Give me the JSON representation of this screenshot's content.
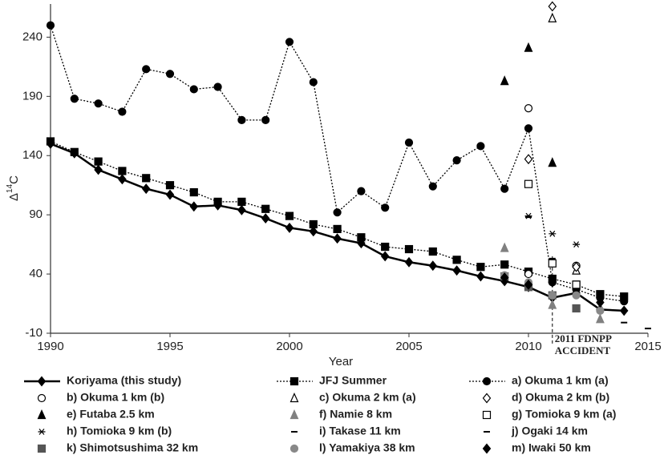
{
  "chart_data": {
    "type": "line",
    "xlabel": "Year",
    "ylabel_parts": [
      "Δ",
      "14",
      "C"
    ],
    "xlim": [
      1990,
      2015
    ],
    "xticks": [
      1990,
      1995,
      2000,
      2005,
      2010,
      2015
    ],
    "ylim": [
      -10,
      268
    ],
    "yticks": [
      -10,
      40,
      90,
      140,
      190,
      240
    ],
    "annotation": {
      "lines": [
        "2011 FDNPP",
        "ACCIDENT"
      ],
      "x": 2011
    },
    "series": [
      {
        "name": "Koriyama (this study)",
        "color": "#000000",
        "line": "solid",
        "marker": "diamond",
        "filled": true,
        "x": [
          1990,
          1991,
          1992,
          1993,
          1994,
          1995,
          1996,
          1997,
          1998,
          1999,
          2000,
          2001,
          2002,
          2003,
          2004,
          2005,
          2006,
          2007,
          2008,
          2009,
          2010,
          2011,
          2012,
          2013,
          2014
        ],
        "values": [
          150,
          142,
          128,
          120,
          112,
          107,
          97,
          98,
          94,
          87,
          79,
          76,
          70,
          66,
          55,
          50,
          47,
          43,
          38,
          34,
          29,
          20,
          24,
          10,
          9
        ]
      },
      {
        "name": "JFJ Summer",
        "color": "#000000",
        "line": "dotted",
        "marker": "square",
        "filled": true,
        "x": [
          1990,
          1991,
          1992,
          1993,
          1994,
          1995,
          1996,
          1997,
          1998,
          1999,
          2000,
          2001,
          2002,
          2003,
          2004,
          2005,
          2006,
          2007,
          2008,
          2009,
          2010,
          2011,
          2012,
          2013,
          2014
        ],
        "values": [
          152,
          143,
          135,
          127,
          121,
          115,
          109,
          101,
          101,
          95,
          89,
          82,
          78,
          71,
          63,
          61,
          59,
          52,
          46,
          48,
          42,
          36,
          31,
          23,
          21
        ]
      },
      {
        "name": "a) Okuma 1 km (a)",
        "color": "#000000",
        "line": "dotted",
        "marker": "circle",
        "filled": true,
        "x": [
          1990,
          1991,
          1992,
          1993,
          1994,
          1995,
          1996,
          1997,
          1998,
          1999,
          2000,
          2001,
          2002,
          2003,
          2004,
          2005,
          2006,
          2007,
          2008,
          2009,
          2010,
          2011,
          2012,
          2013,
          2014
        ],
        "values": [
          250,
          188,
          184,
          177,
          213,
          209,
          196,
          198,
          170,
          170,
          236,
          202,
          92,
          110,
          96,
          151,
          114,
          136,
          148,
          112,
          163,
          33,
          27,
          20,
          17
        ]
      },
      {
        "name": "b) Okuma 1 km (b)",
        "color": "#000000",
        "line": "none",
        "marker": "circle",
        "filled": false,
        "x": [
          2010,
          2010,
          2012
        ],
        "values": [
          180,
          40,
          47
        ]
      },
      {
        "name": "c) Okuma 2 km (a)",
        "color": "#000000",
        "line": "none",
        "marker": "triangle",
        "filled": false,
        "x": [
          2011,
          2012
        ],
        "values": [
          256,
          43
        ]
      },
      {
        "name": "d) Okuma 2 km (b)",
        "color": "#000000",
        "line": "none",
        "marker": "diamond",
        "filled": false,
        "x": [
          2011,
          2010,
          2012
        ],
        "values": [
          266,
          137,
          46
        ]
      },
      {
        "name": "e) Futaba 2.5 km",
        "color": "#000000",
        "line": "none",
        "marker": "triangle",
        "filled": true,
        "x": [
          2009,
          2010,
          2011
        ],
        "values": [
          203,
          231,
          134
        ]
      },
      {
        "name": "f) Namie 8 km",
        "color": "#808080",
        "line": "none",
        "marker": "triangle",
        "filled": true,
        "x": [
          2009,
          2011,
          2013
        ],
        "values": [
          62,
          14,
          2
        ]
      },
      {
        "name": "g) Tomioka 9 km (a)",
        "color": "#000000",
        "line": "none",
        "marker": "square",
        "filled": false,
        "x": [
          2010,
          2011,
          2012
        ],
        "values": [
          116,
          49,
          31
        ]
      },
      {
        "name": "h) Tomioka 9 km (b)",
        "color": "#000000",
        "line": "none",
        "marker": "asterisk",
        "filled": false,
        "x": [
          2010,
          2011,
          2012
        ],
        "values": [
          89,
          74,
          65
        ]
      },
      {
        "name": "i) Takase 11 km",
        "color": "#000000",
        "line": "none",
        "marker": "dash",
        "filled": true,
        "x": [
          2011,
          2014
        ],
        "values": [
          53,
          -1
        ]
      },
      {
        "name": "j) Ogaki 14 km",
        "color": "#000000",
        "line": "none",
        "marker": "dash",
        "filled": true,
        "x": [
          2010,
          2015
        ],
        "values": [
          88,
          -6
        ]
      },
      {
        "name": "k) Shimotsushima 32 km",
        "color": "#555555",
        "line": "none",
        "marker": "square",
        "filled": true,
        "x": [
          2009,
          2010,
          2011,
          2012
        ],
        "values": [
          38,
          29,
          22,
          11
        ]
      },
      {
        "name": "l) Yamakiya 38 km",
        "color": "#888888",
        "line": "none",
        "marker": "circle",
        "filled": true,
        "x": [
          2009,
          2010,
          2011,
          2012,
          2013
        ],
        "values": [
          39,
          33,
          22,
          22,
          9
        ]
      },
      {
        "name": "m) Iwaki 50 km",
        "color": "#000000",
        "line": "none",
        "marker": "diamond",
        "filled": true,
        "x": [
          2009,
          2010,
          2011,
          2013
        ],
        "values": [
          37,
          31,
          33,
          16
        ]
      }
    ]
  }
}
